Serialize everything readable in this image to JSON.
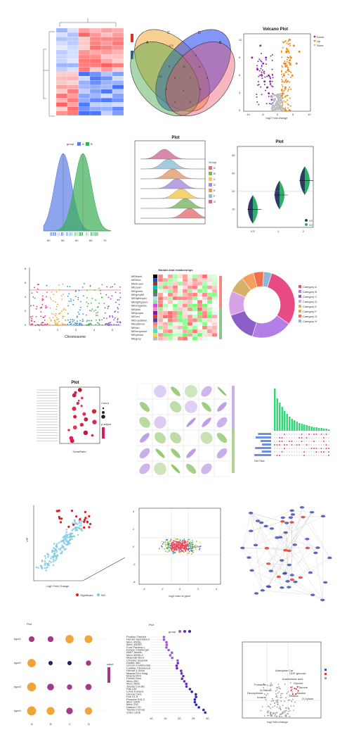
{
  "colors": {
    "heat_high": "#2f5fa7",
    "heat_low": "#d73027",
    "volcano_down": "#8b2fa8",
    "volcano_up": "#ef8a17",
    "volcano_none": "#bdbdbd",
    "density_a": "#5b7fe6",
    "density_b": "#3cae55",
    "sig": "#e41a1c",
    "ns": "#7ec8e3"
  },
  "panels": {
    "p1": {
      "name": "clustered-heatmap"
    },
    "p2": {
      "name": "venn-diagram",
      "set_labels": [
        "A",
        "B",
        "C",
        "D"
      ],
      "counts": [
        "123",
        "7",
        "8",
        "9",
        "10",
        "11",
        "23",
        "6",
        "7",
        "8",
        "9",
        "9",
        "8",
        "6",
        "5"
      ]
    },
    "p3": {
      "name": "volcano-plot",
      "title": "Volcano Plot",
      "xlabel": "log2 Fold change",
      "ylabel": "-Log10 P-value",
      "legend": [
        "Down",
        "Up",
        "None"
      ],
      "xticks": [
        "-10",
        "-5",
        "0",
        "5",
        "10"
      ],
      "yticks": [
        "0",
        "3",
        "6",
        "9",
        "12"
      ]
    },
    "p4": {
      "name": "density-plot",
      "legend_title": "group",
      "legend": [
        "A",
        "B"
      ],
      "xticks": [
        "50",
        "55",
        "60",
        "65",
        "70"
      ]
    },
    "p5": {
      "name": "ridgeline-plot",
      "title": "Plot",
      "legend_title": "Group",
      "legend": [
        "A",
        "B",
        "C",
        "D",
        "E",
        "F",
        "G"
      ],
      "ylabel": "y",
      "xlabel": "x"
    },
    "p6": {
      "name": "split-violin-plot",
      "title": "Plot",
      "legend": [
        "VC",
        "OJ"
      ],
      "xticks": [
        "0.5",
        "1",
        "2"
      ],
      "yticks": [
        "10",
        "20",
        "30",
        "40"
      ],
      "ylabel": "y",
      "xlabel": "x"
    },
    "p7": {
      "name": "manhattan-plot",
      "xlabel": "Chromosome",
      "ylabel": "-log10(P)",
      "xticks": [
        "1",
        "2",
        "3",
        "4",
        "5"
      ],
      "yticks": [
        "0",
        "2",
        "4",
        "6",
        "8"
      ]
    },
    "p8": {
      "name": "module-trait-heatmap",
      "title": "Module-trait relationships",
      "rows": [
        "MEblack",
        "MEblue",
        "MEbrown",
        "MEcyan",
        "MEgreen",
        "MEgrey60",
        "MElightcyan",
        "MElightgreen",
        "MEmagenta",
        "MEpink",
        "MEpurple",
        "MEred",
        "MEroyalblue",
        "MEsalmon",
        "MEtan",
        "MEturquoise",
        "MEyellow",
        "MEgrey"
      ]
    },
    "p9": {
      "name": "donut-chart",
      "legend": [
        "Category A",
        "Category B",
        "Category C",
        "Category D",
        "Category E",
        "Category F",
        "Category G",
        "Category H"
      ]
    },
    "p10": {
      "name": "go-bubble-plot",
      "title": "Plot",
      "xlabel": "GeneRatio",
      "ylabel": "Term",
      "legend_count_title": "Count",
      "legend_padj_title": "p.adjust"
    },
    "p11": {
      "name": "correlation-ellipse-matrix"
    },
    "p12": {
      "name": "upset-plot",
      "xlabel": "Set Size"
    },
    "p13": {
      "name": "3d-volcano-plot",
      "xlabel": "Log2 Fold Change",
      "ylabel": "VIP",
      "zlabel": "-Log10 (P value)",
      "legend": [
        "Significant",
        "NO"
      ]
    },
    "p14": {
      "name": "nine-quadrant-plot",
      "xlabel": "log2 ratio of gene",
      "ylabel": "log2 ratio of protein",
      "xticks": [
        "-4",
        "-2",
        "0",
        "2",
        "4"
      ],
      "yticks": [
        "-4",
        "-2",
        "0",
        "2",
        "4"
      ]
    },
    "p15": {
      "name": "network-graph"
    },
    "p16": {
      "name": "bubble-grid-plot",
      "title": "Plot",
      "legend_title": "value",
      "ylabels": [
        "type1",
        "type2",
        "type3",
        "type4"
      ],
      "xlabels": [
        "A",
        "B",
        "C",
        "D",
        "E"
      ]
    },
    "p17": {
      "name": "lollipop-plot",
      "title": "Plot",
      "legend_title": "group",
      "rows": [
        "Pontiac Firebird",
        "Hornet Sportabout",
        "Merc 450SL",
        "Merc 450SE",
        "Ford Pantera L",
        "Dodge Challenger",
        "AMC Javelin",
        "Merc 450SLC",
        "Maserati Bora",
        "Chrysler Imperial",
        "Duster 360",
        "Lincoln Continental",
        "Cadillac Fleetwood",
        "Hornet 4 Drive",
        "Mazda RX4 Wag",
        "Mazda RX4",
        "Ferrari Dino",
        "Merc 280",
        "Merc 280C",
        "Toyota Corolla",
        "Fiat 128",
        "Lotus Europa",
        "Honda Civic",
        "Fiat X1-9",
        "Porsche 914-2",
        "Merc 240D",
        "Merc 230",
        "Datsun 710",
        "Toyota Corona",
        "Volvo 142E"
      ],
      "xticks": [
        "10",
        "15",
        "20",
        "25",
        "30"
      ]
    },
    "p18": {
      "name": "labeled-volcano-plot",
      "xlabel": "log2 fold change",
      "ylabel": "-log10(p)",
      "labels": [
        "Adenylate Cat",
        "UDP-glucose",
        "Arachidonic acid",
        "Glycine",
        "Taurine",
        "Deoxyribose",
        "D-Ribose",
        "Inosine",
        "Uridine",
        "Fumarate",
        "Alanine",
        "D-Xylose"
      ]
    }
  },
  "chart_data": [
    {
      "type": "heatmap",
      "rows": 20,
      "cols": 6
    },
    {
      "type": "venn",
      "sets": [
        "A",
        "B",
        "C",
        "D"
      ]
    },
    {
      "type": "scatter",
      "title": "Volcano Plot",
      "xlabel": "log2 Fold change",
      "ylabel": "-Log10 P-value",
      "series": [
        {
          "name": "Down",
          "x": [
            -9,
            -7,
            -6,
            -5.5,
            -5,
            -4.5,
            -4,
            -3.5,
            -3,
            -3,
            -2.5,
            -2
          ],
          "y": [
            9,
            7,
            11,
            6,
            8,
            5,
            9,
            4,
            6,
            3,
            5,
            2.5
          ]
        },
        {
          "name": "Up",
          "x": [
            2,
            2.5,
            3,
            3,
            3.5,
            4,
            4.5,
            5,
            5.5,
            6,
            7,
            8
          ],
          "y": [
            3,
            6,
            8,
            4,
            10,
            7,
            12,
            9,
            6,
            11,
            8,
            10
          ]
        },
        {
          "name": "None",
          "x": [
            -1.5,
            -1,
            -0.5,
            0,
            0.5,
            1,
            1.5,
            -1,
            0.8,
            0.2
          ],
          "y": [
            1,
            2,
            0.5,
            1.5,
            1,
            2.2,
            0.8,
            0.3,
            0.6,
            2.8
          ]
        }
      ]
    },
    {
      "type": "area",
      "series": [
        {
          "name": "A",
          "mean": 55,
          "sd": 3
        },
        {
          "name": "B",
          "mean": 62,
          "sd": 3
        }
      ],
      "xlim": [
        48,
        72
      ]
    },
    {
      "type": "area",
      "title": "Plot",
      "series": [
        {
          "name": "A"
        },
        {
          "name": "B"
        },
        {
          "name": "C"
        },
        {
          "name": "D"
        },
        {
          "name": "E"
        },
        {
          "name": "F"
        },
        {
          "name": "G"
        }
      ]
    },
    {
      "type": "violin",
      "title": "Plot",
      "categories": [
        "0.5",
        "1",
        "2"
      ],
      "medians": [
        10,
        18,
        26
      ]
    },
    {
      "type": "scatter",
      "xlabel": "Chromosome",
      "ylabel": "-log10(P)",
      "categories": [
        "1",
        "2",
        "3",
        "4",
        "5"
      ]
    },
    {
      "type": "heatmap",
      "title": "Module-trait relationships",
      "rows": 18,
      "cols": 12
    },
    {
      "type": "pie",
      "values": [
        30,
        20,
        15,
        12,
        8,
        6,
        5,
        4
      ]
    },
    {
      "type": "scatter",
      "title": "Plot",
      "xlabel": "GeneRatio"
    },
    {
      "type": "heatmap",
      "rows": 6,
      "cols": 6
    },
    {
      "type": "bar",
      "xlabel": "Set Size"
    },
    {
      "type": "scatter",
      "xlabel": "Log2 Fold Change",
      "ylabel": "VIP"
    },
    {
      "type": "scatter",
      "xlabel": "log2 ratio of gene",
      "ylabel": "log2 ratio of protein"
    },
    {
      "type": "network"
    },
    {
      "type": "scatter",
      "title": "Plot"
    },
    {
      "type": "scatter",
      "title": "Plot",
      "xlim": [
        10,
        30
      ]
    },
    {
      "type": "scatter",
      "xlabel": "log2 fold change"
    }
  ]
}
